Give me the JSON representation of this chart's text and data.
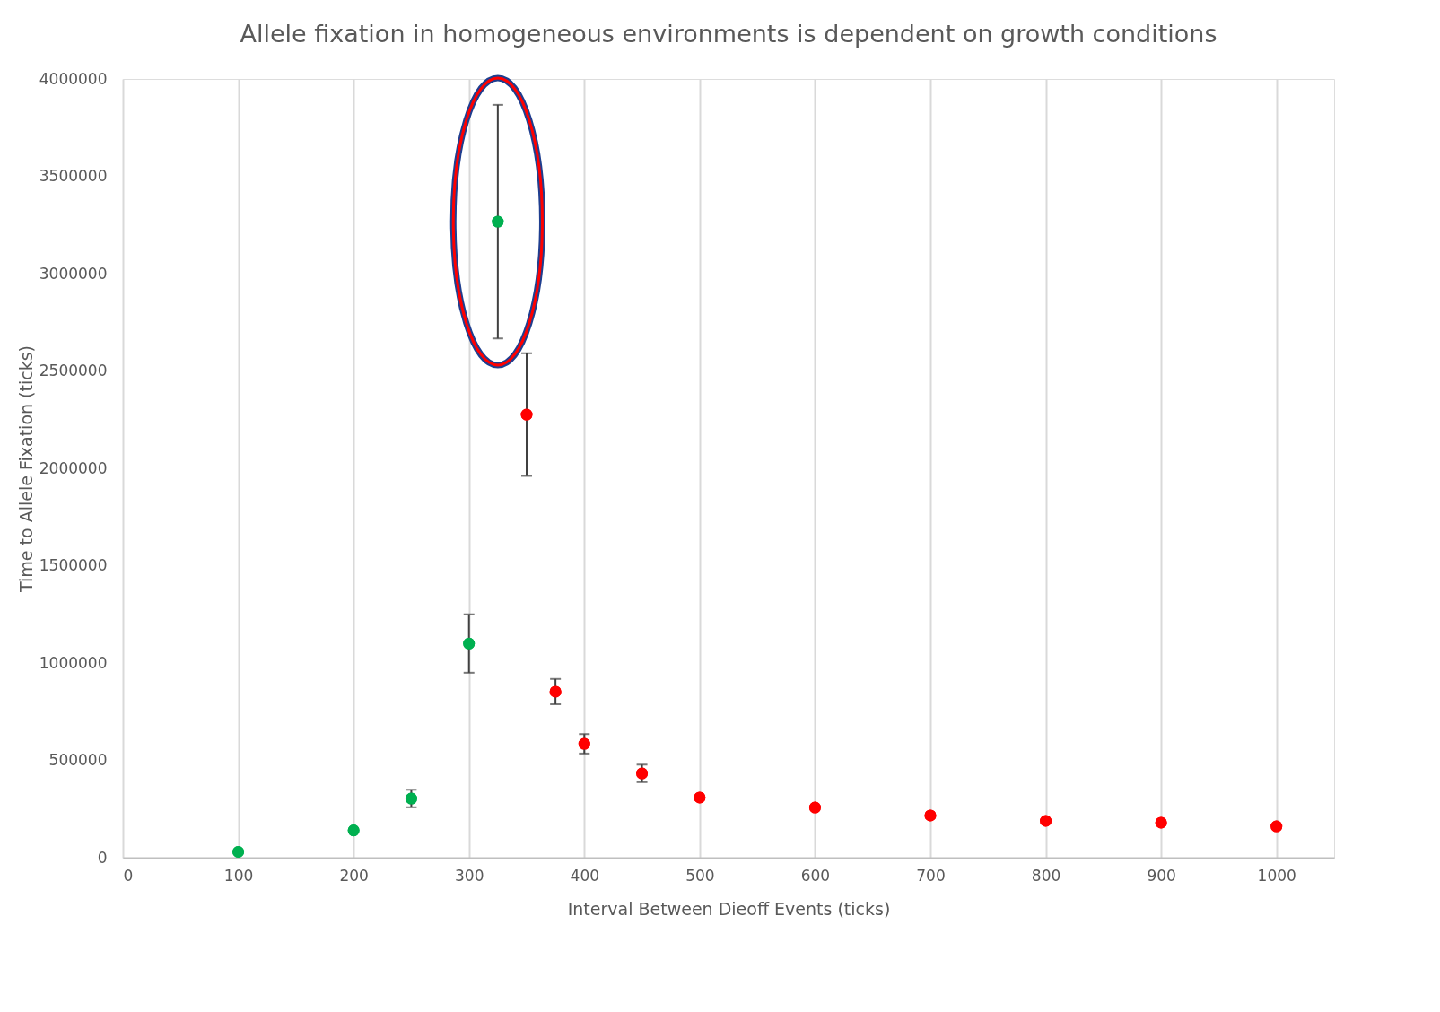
{
  "chart_data": {
    "type": "scatter",
    "title": "Allele fixation in homogeneous  environments is dependent  on growth conditions",
    "xlabel": "Interval Between Dieoff Events (ticks)",
    "ylabel": "Time to Allele Fixation (ticks)",
    "series": [
      {
        "color": "#00b050",
        "x": [
          100,
          200,
          250,
          300,
          325
        ],
        "values": [
          30000,
          140000,
          304000,
          1100000,
          3267000
        ],
        "errors": [
          null,
          null,
          45000,
          150000,
          600000
        ]
      },
      {
        "color": "#ff0000",
        "x": [
          350,
          375,
          400,
          450,
          500,
          600,
          700,
          800,
          900,
          1000
        ],
        "values": [
          2276000,
          853000,
          585000,
          433000,
          309000,
          258000,
          217000,
          189000,
          180000,
          161000
        ],
        "errors": [
          315000,
          65000,
          50000,
          45000,
          null,
          null,
          null,
          null,
          null,
          null
        ]
      }
    ],
    "xlim": [
      0,
      1050
    ],
    "xticks": [
      0,
      100,
      200,
      300,
      400,
      500,
      600,
      700,
      800,
      900,
      1000
    ],
    "ylim": [
      0,
      4000000
    ],
    "yticks": [
      0,
      500000,
      1000000,
      1500000,
      2000000,
      2500000,
      3000000,
      3500000,
      4000000
    ],
    "grid": "x",
    "marker": "circle",
    "legend": false
  }
}
